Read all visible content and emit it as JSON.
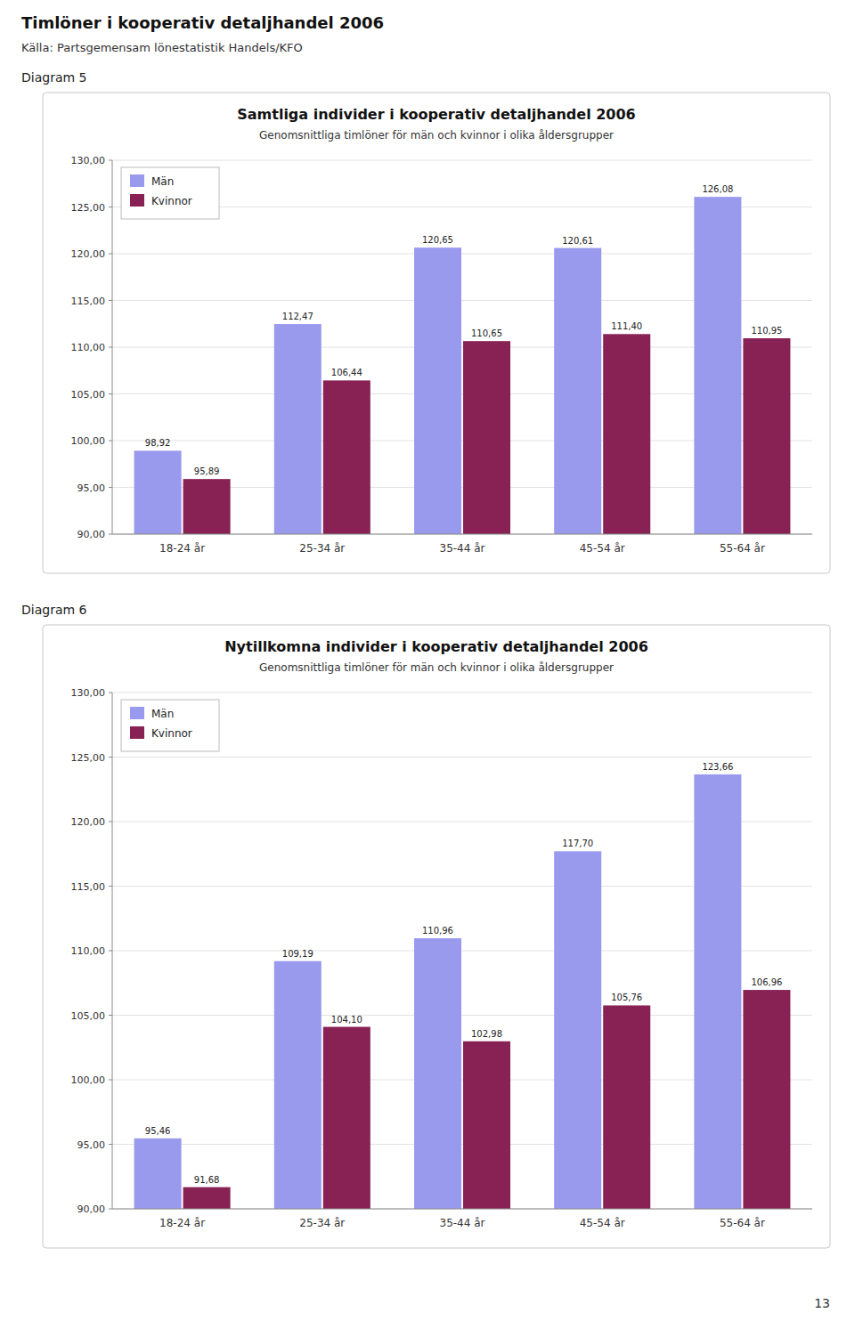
{
  "title": "Timlöner i kooperativ detaljhandel 2006",
  "subtitle": "Källa: Partsgemensam lönestatistik Handels/KFO",
  "annotations": [
    "13"
  ],
  "chart_data": [
    {
      "type": "bar",
      "title": "Samtliga individer i kooperativ detaljhandel 2006",
      "subtitle": "Genomsnittliga timlöner för män och kvinnor i olika åldersgrupper",
      "annotations": [
        "Diagram 5"
      ],
      "categories": [
        "18-24 år",
        "25-34 år",
        "35-44 år",
        "45-54 år",
        "55-64 år"
      ],
      "series": [
        {
          "name": "Män",
          "color": "#9999EE",
          "values": [
            98.92,
            112.47,
            120.65,
            120.61,
            126.08
          ],
          "value_labels": [
            "98,92",
            "112,47",
            "120,65",
            "120,61",
            "126,08"
          ]
        },
        {
          "name": "Kvinnor",
          "color": "#882255",
          "values": [
            95.89,
            106.44,
            110.65,
            111.4,
            110.95
          ],
          "value_labels": [
            "95,89",
            "106,44",
            "110,65",
            "111,40",
            "110,95"
          ]
        }
      ],
      "ylim": [
        90.0,
        130.0
      ],
      "yticks": [
        {
          "value": 90.0,
          "label": "90,00"
        },
        {
          "value": 95.0,
          "label": "95,00"
        },
        {
          "value": 100.0,
          "label": "100,00"
        },
        {
          "value": 105.0,
          "label": "105,00"
        },
        {
          "value": 110.0,
          "label": "110,00"
        },
        {
          "value": 115.0,
          "label": "115,00"
        },
        {
          "value": 120.0,
          "label": "120,00"
        },
        {
          "value": 125.0,
          "label": "125,00"
        },
        {
          "value": 130.0,
          "label": "130,00"
        }
      ],
      "grid": true,
      "legend": "upper left"
    },
    {
      "type": "bar",
      "title": "Nytillkomna individer i kooperativ detaljhandel 2006",
      "subtitle": "Genomsnittliga timlöner för män och kvinnor i olika åldersgrupper",
      "annotations": [
        "Diagram 6"
      ],
      "categories": [
        "18-24 år",
        "25-34 år",
        "35-44 år",
        "45-54 år",
        "55-64 år"
      ],
      "series": [
        {
          "name": "Män",
          "color": "#9999EE",
          "values": [
            95.46,
            109.19,
            110.96,
            117.7,
            123.66
          ],
          "value_labels": [
            "95,46",
            "109,19",
            "110,96",
            "117,70",
            "123,66"
          ]
        },
        {
          "name": "Kvinnor",
          "color": "#882255",
          "values": [
            91.68,
            104.1,
            102.98,
            105.76,
            106.96
          ],
          "value_labels": [
            "91,68",
            "104,10",
            "102,98",
            "105,76",
            "106,96"
          ]
        }
      ],
      "ylim": [
        90.0,
        130.0
      ],
      "yticks": [
        {
          "value": 90.0,
          "label": "90,00"
        },
        {
          "value": 95.0,
          "label": "95,00"
        },
        {
          "value": 100.0,
          "label": "100,00"
        },
        {
          "value": 105.0,
          "label": "105,00"
        },
        {
          "value": 110.0,
          "label": "110,00"
        },
        {
          "value": 115.0,
          "label": "115,00"
        },
        {
          "value": 120.0,
          "label": "120,00"
        },
        {
          "value": 125.0,
          "label": "125,00"
        },
        {
          "value": 130.0,
          "label": "130,00"
        }
      ],
      "grid": true,
      "legend": "upper left"
    }
  ]
}
